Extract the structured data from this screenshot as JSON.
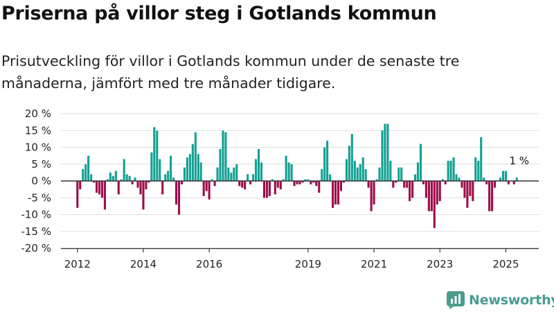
{
  "title": "Priserna på villor steg i Gotlands kommun",
  "subtitle": "Prisutveckling för villor i Gotlands kommun under de senaste tre månaderna, jämfört med tre månader tidigare.",
  "brand": "Newsworthy",
  "colors": {
    "positive": "#12a093",
    "negative": "#9c0d4a",
    "grid": "#dddddd",
    "axis": "#333333",
    "brand": "#4a9c8c"
  },
  "chart_data": {
    "type": "bar",
    "unit": "%",
    "ylim": [
      -20,
      20
    ],
    "yticks": [
      20,
      15,
      10,
      5,
      0,
      -5,
      -10,
      -15,
      -20
    ],
    "ytick_labels": [
      "20 %",
      "15 %",
      "10 %",
      "5 %",
      "0 %",
      "-5 %",
      "-10 %",
      "-15 %",
      "-20 %"
    ],
    "xticks": [
      2012,
      2014,
      2016,
      2019,
      2021,
      2023,
      2025
    ],
    "xlim": [
      2011.5,
      2026.0
    ],
    "grid": true,
    "annotation": {
      "text": "1 %",
      "x": 2025.4,
      "y": 1
    },
    "x": [
      2012.0,
      2012.083,
      2012.167,
      2012.25,
      2012.333,
      2012.417,
      2012.5,
      2012.583,
      2012.667,
      2012.75,
      2012.833,
      2012.917,
      2013.0,
      2013.083,
      2013.167,
      2013.25,
      2013.333,
      2013.417,
      2013.5,
      2013.583,
      2013.667,
      2013.75,
      2013.833,
      2013.917,
      2014.0,
      2014.083,
      2014.167,
      2014.25,
      2014.333,
      2014.417,
      2014.5,
      2014.583,
      2014.667,
      2014.75,
      2014.833,
      2014.917,
      2015.0,
      2015.083,
      2015.167,
      2015.25,
      2015.333,
      2015.417,
      2015.5,
      2015.583,
      2015.667,
      2015.75,
      2015.833,
      2015.917,
      2016.0,
      2016.083,
      2016.167,
      2016.25,
      2016.333,
      2016.417,
      2016.5,
      2016.583,
      2016.667,
      2016.75,
      2016.833,
      2016.917,
      2017.0,
      2017.083,
      2017.167,
      2017.25,
      2017.333,
      2017.417,
      2017.5,
      2017.583,
      2017.667,
      2017.75,
      2017.833,
      2017.917,
      2018.0,
      2018.083,
      2018.167,
      2018.25,
      2018.333,
      2018.417,
      2018.5,
      2018.583,
      2018.667,
      2018.75,
      2018.833,
      2018.917,
      2019.0,
      2019.083,
      2019.167,
      2019.25,
      2019.333,
      2019.417,
      2019.5,
      2019.583,
      2019.667,
      2019.75,
      2019.833,
      2019.917,
      2020.0,
      2020.083,
      2020.167,
      2020.25,
      2020.333,
      2020.417,
      2020.5,
      2020.583,
      2020.667,
      2020.75,
      2020.833,
      2020.917,
      2021.0,
      2021.083,
      2021.167,
      2021.25,
      2021.333,
      2021.417,
      2021.5,
      2021.583,
      2021.667,
      2021.75,
      2021.833,
      2021.917,
      2022.0,
      2022.083,
      2022.167,
      2022.25,
      2022.333,
      2022.417,
      2022.5,
      2022.583,
      2022.667,
      2022.75,
      2022.833,
      2022.917,
      2023.0,
      2023.083,
      2023.167,
      2023.25,
      2023.333,
      2023.417,
      2023.5,
      2023.583,
      2023.667,
      2023.75,
      2023.833,
      2023.917,
      2024.0,
      2024.083,
      2024.167,
      2024.25,
      2024.333,
      2024.417,
      2024.5,
      2024.583,
      2024.667,
      2024.75,
      2024.833,
      2024.917,
      2025.0,
      2025.083,
      2025.167,
      2025.25,
      2025.333
    ],
    "values": [
      -8,
      -2.5,
      3.5,
      5,
      7.5,
      2,
      -0.5,
      -3.5,
      -4,
      -5,
      -8.5,
      0.5,
      2.5,
      1.5,
      3,
      -4,
      0.5,
      6.5,
      2,
      1.5,
      -1,
      1,
      -2,
      -4,
      -8.5,
      -2.5,
      -0.5,
      8.5,
      16,
      15,
      6.5,
      -4,
      2,
      3,
      7.5,
      1,
      -7,
      -10,
      -1,
      4,
      7,
      8,
      11,
      14.5,
      8,
      5.5,
      -4.5,
      -3,
      -5.5,
      0.5,
      -1.5,
      4,
      9.5,
      15,
      14.5,
      4,
      2.5,
      4,
      5,
      -1.5,
      -2,
      -2.5,
      2,
      -1,
      2,
      6.5,
      9.5,
      5.5,
      -5,
      -5,
      -4.5,
      0.5,
      -4,
      -2,
      -2.5,
      0.5,
      7.5,
      5.5,
      5,
      -1.5,
      -1,
      -1,
      -0.5,
      0.5,
      0.5,
      -1,
      -0.5,
      -1.5,
      -3.5,
      3.5,
      10,
      12,
      2,
      -8,
      -7,
      -7,
      -3,
      -0.5,
      6.5,
      10.5,
      14,
      6,
      4,
      5,
      7,
      3.5,
      -2,
      -9,
      -7,
      0.5,
      4,
      15,
      17,
      17,
      6,
      -2,
      -0.5,
      4,
      4,
      -2,
      -2,
      -6,
      -5,
      2,
      5.5,
      11,
      -1,
      -5,
      -9,
      -9,
      -14,
      -7,
      -6,
      0.5,
      -1,
      6,
      6,
      7,
      2,
      1,
      -2,
      -5,
      -8,
      -4.5,
      -6,
      7,
      6,
      13,
      1,
      -1,
      -9,
      -9,
      -2,
      0,
      1,
      3,
      3,
      -1,
      0,
      -1,
      1
    ]
  }
}
